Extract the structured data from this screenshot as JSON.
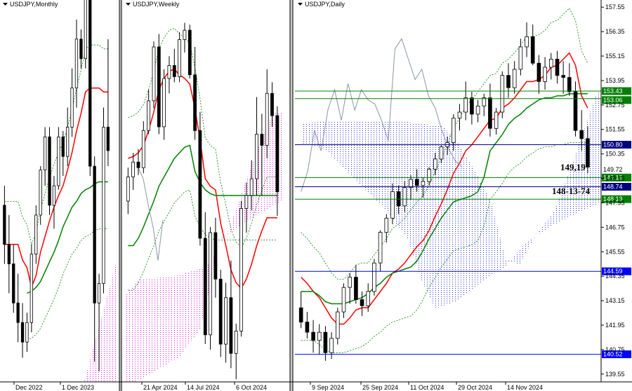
{
  "chart_data": [
    {
      "type": "candlestick",
      "title": "USDJPY,Monthly",
      "x_labels": [
        "Dec 2022",
        "1 Dec 2023"
      ],
      "ylim": [
        139.0,
        158.0
      ],
      "candles": [
        [
          148.0,
          149.0,
          145.0,
          146.0
        ],
        [
          146.0,
          147.5,
          143.5,
          145.0
        ],
        [
          145.0,
          146.0,
          142.5,
          143.0
        ],
        [
          143.0,
          144.5,
          141.0,
          142.0
        ],
        [
          142.0,
          143.0,
          140.2,
          141.0
        ],
        [
          141.0,
          142.5,
          140.5,
          142.0
        ],
        [
          142.0,
          146.0,
          141.5,
          145.5
        ],
        [
          145.5,
          148.0,
          145.0,
          147.5
        ],
        [
          147.5,
          150.0,
          147.0,
          149.8
        ],
        [
          149.8,
          152.0,
          149.0,
          151.5
        ],
        [
          151.5,
          152.0,
          147.5,
          148.0
        ],
        [
          148.0,
          149.5,
          146.8,
          149.0
        ],
        [
          149.0,
          152.0,
          148.8,
          151.5
        ],
        [
          151.5,
          151.8,
          149.5,
          150.5
        ],
        [
          150.5,
          153.0,
          150.0,
          152.0
        ],
        [
          152.0,
          155.0,
          151.5,
          154.0
        ],
        [
          154.0,
          157.5,
          153.0,
          156.5
        ],
        [
          156.5,
          157.0,
          155.0,
          155.5
        ],
        [
          155.5,
          161.5,
          155.0,
          161.0
        ],
        [
          161.0,
          162.0,
          149.5,
          150.0
        ],
        [
          150.0,
          150.5,
          140.0,
          143.0
        ],
        [
          143.0,
          144.5,
          139.5,
          144.0
        ],
        [
          144.0,
          153.0,
          143.5,
          152.0
        ],
        [
          152.0,
          156.5,
          150.0,
          150.8
        ]
      ],
      "overlays": [
        {
          "name": "tenkan",
          "color": "#ff0000",
          "values": [
            146.0,
            146.0,
            146.0,
            146.0,
            145.2,
            144.8,
            143.8,
            144.4,
            145.6,
            146.4,
            147.2,
            147.9,
            148.5,
            149.0,
            149.8,
            150.7,
            151.8,
            152.7,
            153.8,
            154.0,
            154.0,
            154.0,
            153.8,
            153.8
          ]
        },
        {
          "name": "kijun",
          "color": "#008000",
          "values": [
            null,
            null,
            null,
            null,
            null,
            143.5,
            143.6,
            143.8,
            144.1,
            144.6,
            145.1,
            145.6,
            146.2,
            146.9,
            147.4,
            147.9,
            148.2,
            148.6,
            148.8,
            148.9,
            149.1,
            149.2,
            149.2,
            149.2
          ]
        }
      ]
    },
    {
      "type": "candlestick",
      "title": "USDJPY,Weekly",
      "x_labels": [
        "21 Apr 2024",
        "14 Jul 2024",
        "6 Oct 2024"
      ],
      "ylim": [
        139.5,
        159.5
      ],
      "candles": [
        [
          149.2,
          151.0,
          148.5,
          150.5
        ],
        [
          150.5,
          151.8,
          149.8,
          151.3
        ],
        [
          151.3,
          152.0,
          150.6,
          151.0
        ],
        [
          151.0,
          153.5,
          150.7,
          153.0
        ],
        [
          153.0,
          155.2,
          152.8,
          154.6
        ],
        [
          154.6,
          157.8,
          154.2,
          157.5
        ],
        [
          157.5,
          158.2,
          152.8,
          153.2
        ],
        [
          153.2,
          156.3,
          152.5,
          155.8
        ],
        [
          155.8,
          157.0,
          155.0,
          156.5
        ],
        [
          156.5,
          157.4,
          155.6,
          155.9
        ],
        [
          155.9,
          158.3,
          155.6,
          157.9
        ],
        [
          157.9,
          158.8,
          157.2,
          158.4
        ],
        [
          158.4,
          158.7,
          155.8,
          156.0
        ],
        [
          156.0,
          157.5,
          152.5,
          153.0
        ],
        [
          153.0,
          154.0,
          146.8,
          147.2
        ],
        [
          147.2,
          148.6,
          141.5,
          142.0
        ],
        [
          142.0,
          147.8,
          141.2,
          147.5
        ],
        [
          147.5,
          148.3,
          144.0,
          145.0
        ],
        [
          145.0,
          145.5,
          140.8,
          141.5
        ],
        [
          141.5,
          144.8,
          140.5,
          144.0
        ],
        [
          144.0,
          146.0,
          140.2,
          141.0
        ],
        [
          141.0,
          142.6,
          139.6,
          142.2
        ],
        [
          142.2,
          149.2,
          141.9,
          148.8
        ],
        [
          148.8,
          150.2,
          147.5,
          149.5
        ],
        [
          149.5,
          151.4,
          148.7,
          150.4
        ],
        [
          150.4,
          154.8,
          149.5,
          152.8
        ],
        [
          152.8,
          153.9,
          149.5,
          152.2
        ],
        [
          152.2,
          156.3,
          151.5,
          155.0
        ],
        [
          155.0,
          155.6,
          153.2,
          153.8
        ],
        [
          153.8,
          154.3,
          148.4,
          149.7
        ]
      ],
      "overlays": [
        {
          "name": "tenkan",
          "color": "#ff0000",
          "values": [
            151.5,
            151.6,
            151.8,
            152.2,
            153.0,
            154.0,
            155.2,
            155.8,
            156.2,
            156.3,
            156.0,
            155.8,
            155.5,
            154.2,
            152.5,
            150.4,
            150.0,
            149.8,
            148.0,
            146.8,
            145.5,
            144.8,
            144.5,
            145.0,
            145.8,
            146.8,
            147.6,
            148.3,
            148.3,
            148.3
          ]
        },
        {
          "name": "kijun",
          "color": "#008000",
          "values": [
            146.8,
            146.8,
            147.2,
            147.8,
            148.5,
            149.2,
            150.0,
            150.5,
            151.0,
            151.5,
            151.8,
            152.1,
            152.2,
            150.8,
            150.2,
            149.8,
            149.6,
            149.5,
            149.5,
            149.5,
            149.5,
            149.5,
            149.5,
            149.5,
            149.5,
            149.5,
            149.5,
            149.5,
            149.5,
            149.5
          ]
        }
      ]
    },
    {
      "type": "candlestick",
      "title": "USDJPY,Daily",
      "x_labels": [
        "9 Sep 2024",
        "25 Sep 2024",
        "11 Oct 2024",
        "29 Oct 2024",
        "14 Nov 2024"
      ],
      "ylim": [
        139.2,
        157.9
      ],
      "y_ticks": [
        157.55,
        156.35,
        155.15,
        153.95,
        152.75,
        151.55,
        150.35,
        149.15,
        147.95,
        146.75,
        145.55,
        144.35,
        143.15,
        141.95,
        140.75,
        139.55
      ],
      "candles": [
        [
          142.8,
          143.6,
          141.8,
          142.1
        ],
        [
          142.1,
          142.6,
          141.3,
          141.6
        ],
        [
          141.6,
          142.2,
          140.6,
          141.2
        ],
        [
          141.2,
          142.0,
          140.5,
          141.6
        ],
        [
          141.6,
          141.9,
          140.2,
          140.6
        ],
        [
          140.6,
          141.6,
          140.3,
          141.3
        ],
        [
          141.3,
          142.8,
          141.0,
          142.6
        ],
        [
          142.6,
          144.0,
          142.3,
          143.8
        ],
        [
          143.8,
          144.5,
          143.0,
          144.3
        ],
        [
          144.3,
          144.9,
          143.0,
          143.2
        ],
        [
          143.2,
          143.6,
          142.4,
          142.9
        ],
        [
          142.9,
          144.0,
          142.6,
          143.6
        ],
        [
          143.6,
          145.2,
          143.4,
          145.0
        ],
        [
          145.0,
          146.6,
          144.6,
          146.5
        ],
        [
          146.5,
          147.4,
          146.0,
          147.2
        ],
        [
          147.2,
          148.9,
          146.9,
          148.5
        ],
        [
          148.5,
          148.8,
          147.4,
          147.8
        ],
        [
          147.8,
          149.0,
          147.5,
          148.7
        ],
        [
          148.7,
          149.3,
          148.1,
          149.1
        ],
        [
          149.1,
          149.6,
          148.5,
          148.8
        ],
        [
          148.8,
          149.2,
          148.2,
          149.0
        ],
        [
          149.0,
          149.7,
          148.8,
          149.6
        ],
        [
          149.6,
          150.4,
          149.3,
          150.1
        ],
        [
          150.1,
          150.8,
          149.9,
          150.7
        ],
        [
          150.7,
          151.2,
          150.3,
          150.9
        ],
        [
          150.9,
          152.3,
          150.5,
          152.1
        ],
        [
          152.1,
          152.8,
          151.5,
          152.4
        ],
        [
          152.4,
          153.9,
          152.0,
          153.1
        ],
        [
          153.1,
          153.4,
          151.8,
          152.3
        ],
        [
          152.3,
          153.0,
          151.9,
          152.7
        ],
        [
          152.7,
          153.3,
          152.2,
          153.1
        ],
        [
          153.1,
          153.8,
          151.2,
          151.6
        ],
        [
          151.6,
          152.6,
          151.3,
          152.4
        ],
        [
          152.4,
          154.4,
          152.1,
          154.2
        ],
        [
          154.2,
          154.8,
          153.1,
          153.6
        ],
        [
          153.6,
          154.9,
          153.3,
          154.5
        ],
        [
          154.5,
          156.0,
          154.2,
          155.6
        ],
        [
          155.6,
          156.8,
          155.1,
          156.1
        ],
        [
          156.1,
          156.7,
          154.7,
          154.8
        ],
        [
          154.8,
          155.2,
          153.3,
          153.9
        ],
        [
          153.9,
          155.1,
          153.5,
          154.6
        ],
        [
          154.6,
          155.3,
          154.0,
          155.0
        ],
        [
          155.0,
          155.4,
          153.8,
          154.2
        ],
        [
          154.2,
          154.9,
          153.3,
          154.1
        ],
        [
          154.1,
          154.8,
          153.2,
          153.4
        ],
        [
          153.4,
          153.9,
          151.2,
          151.5
        ],
        [
          151.5,
          152.5,
          150.5,
          151.1
        ],
        [
          151.1,
          151.7,
          149.4,
          149.7
        ]
      ],
      "overlays": [
        {
          "name": "tenkan",
          "color": "#ff0000",
          "values": [
            144.3,
            144.0,
            143.6,
            143.3,
            142.8,
            142.3,
            142.0,
            142.0,
            142.3,
            142.7,
            142.8,
            142.8,
            143.2,
            143.6,
            144.0,
            144.5,
            144.7,
            145.0,
            145.4,
            145.8,
            146.1,
            146.6,
            147.3,
            147.9,
            148.6,
            149.4,
            149.9,
            150.5,
            150.8,
            151.2,
            151.6,
            152.0,
            152.1,
            152.6,
            152.8,
            153.1,
            153.5,
            153.9,
            153.9,
            154.0,
            154.2,
            154.6,
            154.7,
            155.0,
            155.3,
            154.7,
            153.2,
            152.6
          ]
        },
        {
          "name": "kijun",
          "color": "#008000",
          "values": [
            143.6,
            143.6,
            143.6,
            143.4,
            143.1,
            143.0,
            143.0,
            143.0,
            143.1,
            143.2,
            143.3,
            143.5,
            143.8,
            144.0,
            144.3,
            144.5,
            144.6,
            144.7,
            144.8,
            145.1,
            145.6,
            146.2,
            146.7,
            147.2,
            147.6,
            148.0,
            148.1,
            148.2,
            148.3,
            148.5,
            149.2,
            150.5,
            150.9,
            151.3,
            151.8,
            152.1,
            152.3,
            152.6,
            152.8,
            153.0,
            153.1,
            153.1,
            153.2,
            153.2,
            153.3,
            153.3,
            153.3,
            153.3
          ]
        }
      ],
      "levels": [
        {
          "value": 153.43,
          "label": "153.43",
          "color": "#008000"
        },
        {
          "value": 153.06,
          "label": "153.06",
          "color": "#008000"
        },
        {
          "value": 150.8,
          "label": "150.80",
          "color": "#000080"
        },
        {
          "value": 149.72,
          "label": "149.72",
          "color": "#000000"
        },
        {
          "value": 149.19,
          "label": "149.19",
          "color": "#008000"
        },
        {
          "value": 148.74,
          "label": "148.74",
          "color": "#000080"
        },
        {
          "value": 148.13,
          "label": "148.13",
          "color": "#008000"
        },
        {
          "value": 144.59,
          "label": "144.59",
          "color": "#0000ff"
        },
        {
          "value": 140.52,
          "label": "140.52",
          "color": "#0000ff"
        }
      ],
      "annotations": [
        {
          "text": "149,19",
          "value": 149.19
        },
        {
          "text": "148-13-74",
          "value": 148.5
        }
      ]
    }
  ]
}
